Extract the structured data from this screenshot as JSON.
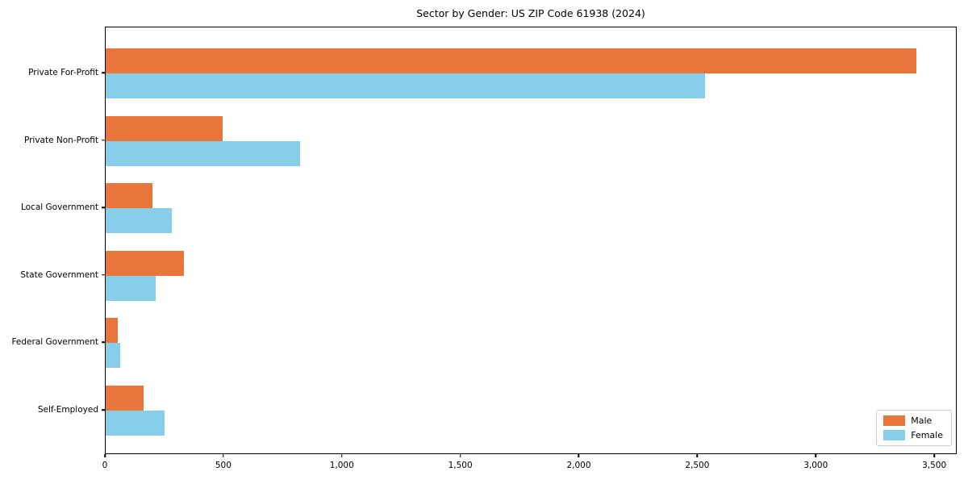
{
  "title": "Sector by Gender: US ZIP Code 61938 (2024)",
  "chart_data": {
    "type": "bar",
    "orientation": "horizontal",
    "title": "Sector by Gender: US ZIP Code 61938 (2024)",
    "xlabel": "",
    "ylabel": "",
    "categories": [
      "Private For-Profit",
      "Private Non-Profit",
      "Local Government",
      "State Government",
      "Federal Government",
      "Self-Employed"
    ],
    "series": [
      {
        "name": "Male",
        "color": "#E8763B",
        "values": [
          3420,
          495,
          196,
          330,
          50,
          160
        ]
      },
      {
        "name": "Female",
        "color": "#87CEEB",
        "values": [
          2530,
          820,
          280,
          210,
          60,
          250
        ]
      }
    ],
    "xlim": [
      0,
      3595
    ],
    "x_ticks": [
      0,
      500,
      1000,
      1500,
      2000,
      2500,
      3000,
      3500
    ],
    "x_tick_labels": [
      "0",
      "500",
      "1,000",
      "1,500",
      "2,000",
      "2,500",
      "3,000",
      "3,500"
    ],
    "grid": false,
    "legend_position": "lower right"
  },
  "legend": {
    "items": [
      {
        "label": "Male",
        "color": "#E8763B"
      },
      {
        "label": "Female",
        "color": "#87CEEB"
      }
    ]
  }
}
